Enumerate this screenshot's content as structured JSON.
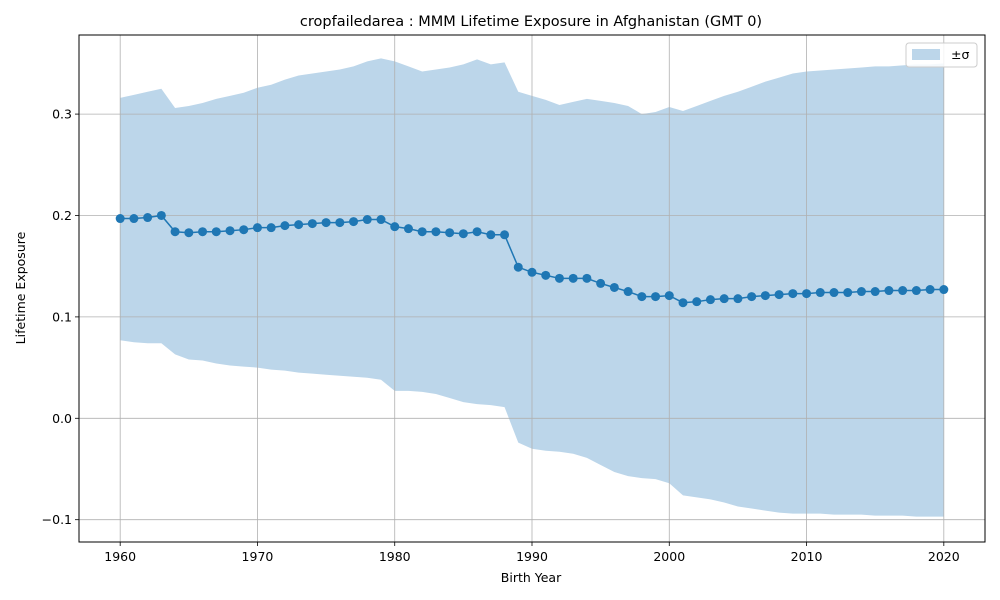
{
  "chart_data": {
    "type": "line",
    "title": "cropfailedarea : MMM Lifetime Exposure in Afghanistan (GMT 0)",
    "xlabel": "Birth Year",
    "ylabel": "Lifetime Exposure",
    "xlim": [
      1957,
      2023
    ],
    "ylim": [
      -0.122,
      0.378
    ],
    "xticks": [
      1960,
      1970,
      1980,
      1990,
      2000,
      2010,
      2020
    ],
    "yticks": [
      -0.1,
      0.0,
      0.1,
      0.2,
      0.3
    ],
    "ytick_labels": [
      "−0.1",
      "0.0",
      "0.1",
      "0.2",
      "0.3"
    ],
    "grid": true,
    "legend": {
      "placement": "top-right",
      "label": "±σ"
    },
    "colors": {
      "line": "#1f77b4",
      "band": "#bcd6ea",
      "grid": "#b0b0b0"
    },
    "x": [
      1960,
      1961,
      1962,
      1963,
      1964,
      1965,
      1966,
      1967,
      1968,
      1969,
      1970,
      1971,
      1972,
      1973,
      1974,
      1975,
      1976,
      1977,
      1978,
      1979,
      1980,
      1981,
      1982,
      1983,
      1984,
      1985,
      1986,
      1987,
      1988,
      1989,
      1990,
      1991,
      1992,
      1993,
      1994,
      1995,
      1996,
      1997,
      1998,
      1999,
      2000,
      2001,
      2002,
      2003,
      2004,
      2005,
      2006,
      2007,
      2008,
      2009,
      2010,
      2011,
      2012,
      2013,
      2014,
      2015,
      2016,
      2017,
      2018,
      2019,
      2020
    ],
    "series": [
      {
        "values": [
          0.197,
          0.197,
          0.198,
          0.2,
          0.184,
          0.183,
          0.184,
          0.184,
          0.185,
          0.186,
          0.188,
          0.188,
          0.19,
          0.191,
          0.192,
          0.193,
          0.193,
          0.194,
          0.196,
          0.196,
          0.189,
          0.187,
          0.184,
          0.184,
          0.183,
          0.182,
          0.184,
          0.181,
          0.181,
          0.149,
          0.144,
          0.141,
          0.138,
          0.138,
          0.138,
          0.133,
          0.129,
          0.125,
          0.12,
          0.12,
          0.121,
          0.114,
          0.115,
          0.117,
          0.118,
          0.118,
          0.12,
          0.121,
          0.122,
          0.123,
          0.123,
          0.124,
          0.124,
          0.124,
          0.125,
          0.125,
          0.126,
          0.126,
          0.126,
          0.127,
          0.127
        ],
        "upper": [
          0.316,
          0.319,
          0.322,
          0.325,
          0.306,
          0.308,
          0.311,
          0.315,
          0.318,
          0.321,
          0.326,
          0.329,
          0.334,
          0.338,
          0.34,
          0.342,
          0.344,
          0.347,
          0.352,
          0.355,
          0.352,
          0.347,
          0.342,
          0.344,
          0.346,
          0.349,
          0.354,
          0.349,
          0.351,
          0.322,
          0.318,
          0.314,
          0.309,
          0.312,
          0.315,
          0.313,
          0.311,
          0.308,
          0.3,
          0.302,
          0.307,
          0.303,
          0.308,
          0.313,
          0.318,
          0.322,
          0.327,
          0.332,
          0.336,
          0.34,
          0.342,
          0.343,
          0.344,
          0.345,
          0.346,
          0.347,
          0.347,
          0.348,
          0.349,
          0.349,
          0.35
        ],
        "lower": [
          0.077,
          0.075,
          0.074,
          0.074,
          0.063,
          0.058,
          0.057,
          0.054,
          0.052,
          0.051,
          0.05,
          0.048,
          0.047,
          0.045,
          0.044,
          0.043,
          0.042,
          0.041,
          0.04,
          0.038,
          0.027,
          0.027,
          0.026,
          0.024,
          0.02,
          0.016,
          0.014,
          0.013,
          0.011,
          -0.024,
          -0.03,
          -0.032,
          -0.033,
          -0.035,
          -0.039,
          -0.046,
          -0.053,
          -0.057,
          -0.059,
          -0.06,
          -0.064,
          -0.076,
          -0.078,
          -0.08,
          -0.083,
          -0.087,
          -0.089,
          -0.091,
          -0.093,
          -0.094,
          -0.094,
          -0.094,
          -0.095,
          -0.095,
          -0.095,
          -0.096,
          -0.096,
          -0.096,
          -0.097,
          -0.097,
          -0.097
        ]
      }
    ]
  }
}
